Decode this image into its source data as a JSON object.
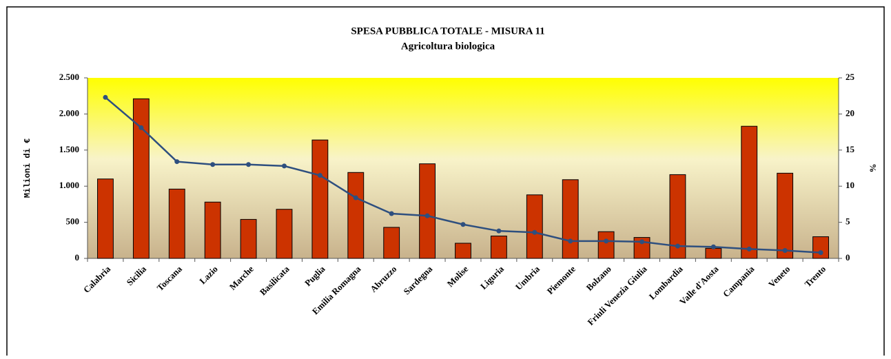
{
  "chart_data": {
    "type": "bar",
    "title": "SPESA PUBBLICA TOTALE -  MISURA 11",
    "subtitle": "Agricoltura biologica",
    "y_label": "Milioni di €",
    "y2_label": "%",
    "categories": [
      "Calabria",
      "Sicilia",
      "Toscana",
      "Lazio",
      "Marche",
      "Basilicata",
      "Puglia",
      "Emilia Romagna",
      "Abruzzo",
      "Sardegna",
      "Molise",
      "Liguria",
      "Umbria",
      "Piemonte",
      "Bolzano",
      "Friuli Venezia Giulia",
      "Lombardia",
      "Valle d'Aosta",
      "Campania",
      "Veneto",
      "Trento"
    ],
    "series": [
      {
        "type": "bar",
        "color": "#cc3300",
        "values": [
          1100,
          2210,
          960,
          780,
          540,
          680,
          1640,
          1190,
          430,
          1310,
          210,
          310,
          880,
          1090,
          370,
          290,
          1160,
          140,
          1830,
          1180,
          300
        ]
      },
      {
        "type": "line",
        "axis": "y2",
        "color": "#2e4f7f",
        "values": [
          22.3,
          18.1,
          13.4,
          13.0,
          13.0,
          12.8,
          11.5,
          8.4,
          6.2,
          5.9,
          4.7,
          3.8,
          3.6,
          2.4,
          2.4,
          2.3,
          1.7,
          1.6,
          1.3,
          1.1,
          0.8
        ]
      }
    ],
    "ylim": [
      0,
      2500
    ],
    "yticks": [
      0,
      500,
      {
        "value": 1000,
        "label": "1.000"
      },
      {
        "value": 1500,
        "label": "1.500"
      },
      {
        "value": 2000,
        "label": "2.000"
      },
      {
        "value": 2500,
        "label": "2.500"
      }
    ],
    "y2lim": [
      0,
      25
    ],
    "y2ticks": [
      0,
      5,
      10,
      15,
      20,
      25
    ]
  }
}
